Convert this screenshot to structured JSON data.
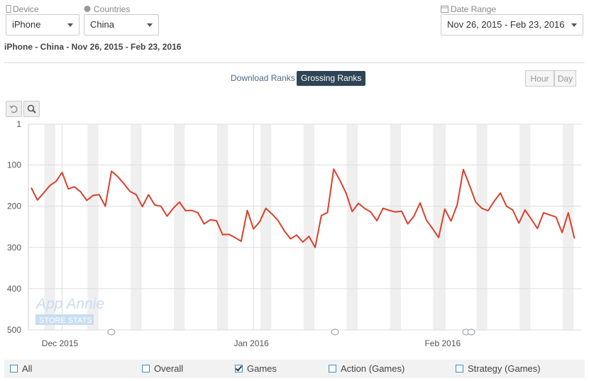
{
  "filters": {
    "device_label": "Device",
    "device": "iPhone",
    "countries_label": "Countries",
    "country": "China",
    "date_label": "Date Range",
    "date_range": "Nov 26, 2015 - Feb 23, 2016"
  },
  "subtitle": "iPhone - China - Nov 26, 2015 - Feb 23, 2016",
  "tabs": [
    "Download Ranks",
    "Grossing Ranks"
  ],
  "active_tab": 1,
  "granularity": [
    "Hour",
    "Day"
  ],
  "watermark": {
    "title": "App Annie",
    "subtitle": "STORE STATS"
  },
  "series_filters": [
    {
      "label": "All",
      "checked": false
    },
    {
      "label": "Overall",
      "checked": false
    },
    {
      "label": "Games",
      "checked": true
    },
    {
      "label": "Action (Games)",
      "checked": false
    },
    {
      "label": "Strategy (Games)",
      "checked": false
    }
  ],
  "chart_data": {
    "type": "line",
    "xlim": [
      0,
      88
    ],
    "xticks": [
      {
        "value": 5,
        "label": "Dec 2015"
      },
      {
        "value": 36,
        "label": "Jan 2016"
      },
      {
        "value": 67,
        "label": "Feb 2016"
      }
    ],
    "ylim": [
      500,
      1
    ],
    "yticks": [
      1,
      100,
      200,
      300,
      400,
      500
    ],
    "grid": true,
    "series": [
      {
        "color": "#d9412b",
        "values": [
          155,
          185,
          168,
          150,
          140,
          118,
          158,
          153,
          165,
          186,
          174,
          172,
          200,
          115,
          128,
          145,
          164,
          172,
          201,
          172,
          197,
          200,
          224,
          205,
          190,
          211,
          210,
          216,
          243,
          233,
          235,
          269,
          268,
          276,
          285,
          210,
          255,
          238,
          205,
          219,
          235,
          260,
          279,
          270,
          287,
          273,
          300,
          223,
          215,
          110,
          137,
          168,
          213,
          193,
          205,
          214,
          235,
          205,
          210,
          214,
          212,
          243,
          224,
          192,
          233,
          254,
          276,
          207,
          236,
          197,
          111,
          149,
          190,
          205,
          211,
          188,
          168,
          200,
          209,
          241,
          209,
          231,
          254,
          216,
          221,
          226,
          264,
          216,
          278
        ]
      }
    ]
  }
}
